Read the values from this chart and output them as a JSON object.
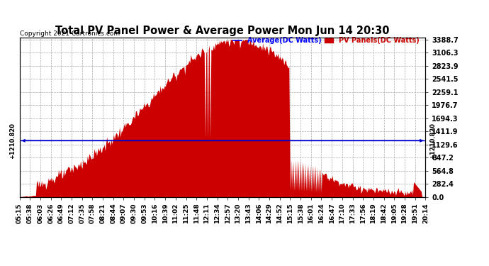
{
  "title": "Total PV Panel Power & Average Power Mon Jun 14 20:30",
  "copyright": "Copyright 2021 Cartronics.com",
  "legend_avg": "Average(DC Watts)",
  "legend_pv": "PV Panels(DC Watts)",
  "average_value": 1210.82,
  "ymax": 3388.7,
  "ymin": 0.0,
  "yticks": [
    0.0,
    282.4,
    564.8,
    847.2,
    1129.6,
    1411.9,
    1694.3,
    1976.7,
    2259.1,
    2541.5,
    2823.9,
    3106.3,
    3388.7
  ],
  "background_color": "#ffffff",
  "fill_color": "#cc0000",
  "line_color": "#0000cc",
  "avg_label_color": "#0000ff",
  "pv_label_color": "#cc0000",
  "title_color": "#000000",
  "grid_color": "#aaaaaa",
  "xtick_labels": [
    "05:15",
    "05:38",
    "06:03",
    "06:26",
    "06:49",
    "07:12",
    "07:35",
    "07:58",
    "08:21",
    "08:44",
    "09:07",
    "09:30",
    "09:53",
    "10:16",
    "10:39",
    "11:02",
    "11:25",
    "11:48",
    "12:11",
    "12:34",
    "12:57",
    "13:20",
    "13:43",
    "14:06",
    "14:29",
    "14:52",
    "15:15",
    "15:38",
    "16:01",
    "16:24",
    "16:47",
    "17:10",
    "17:33",
    "17:56",
    "18:19",
    "18:42",
    "19:05",
    "19:28",
    "19:51",
    "20:14"
  ],
  "num_points": 480,
  "peak_value": 3388.7,
  "avg_line_y": 1210.82
}
